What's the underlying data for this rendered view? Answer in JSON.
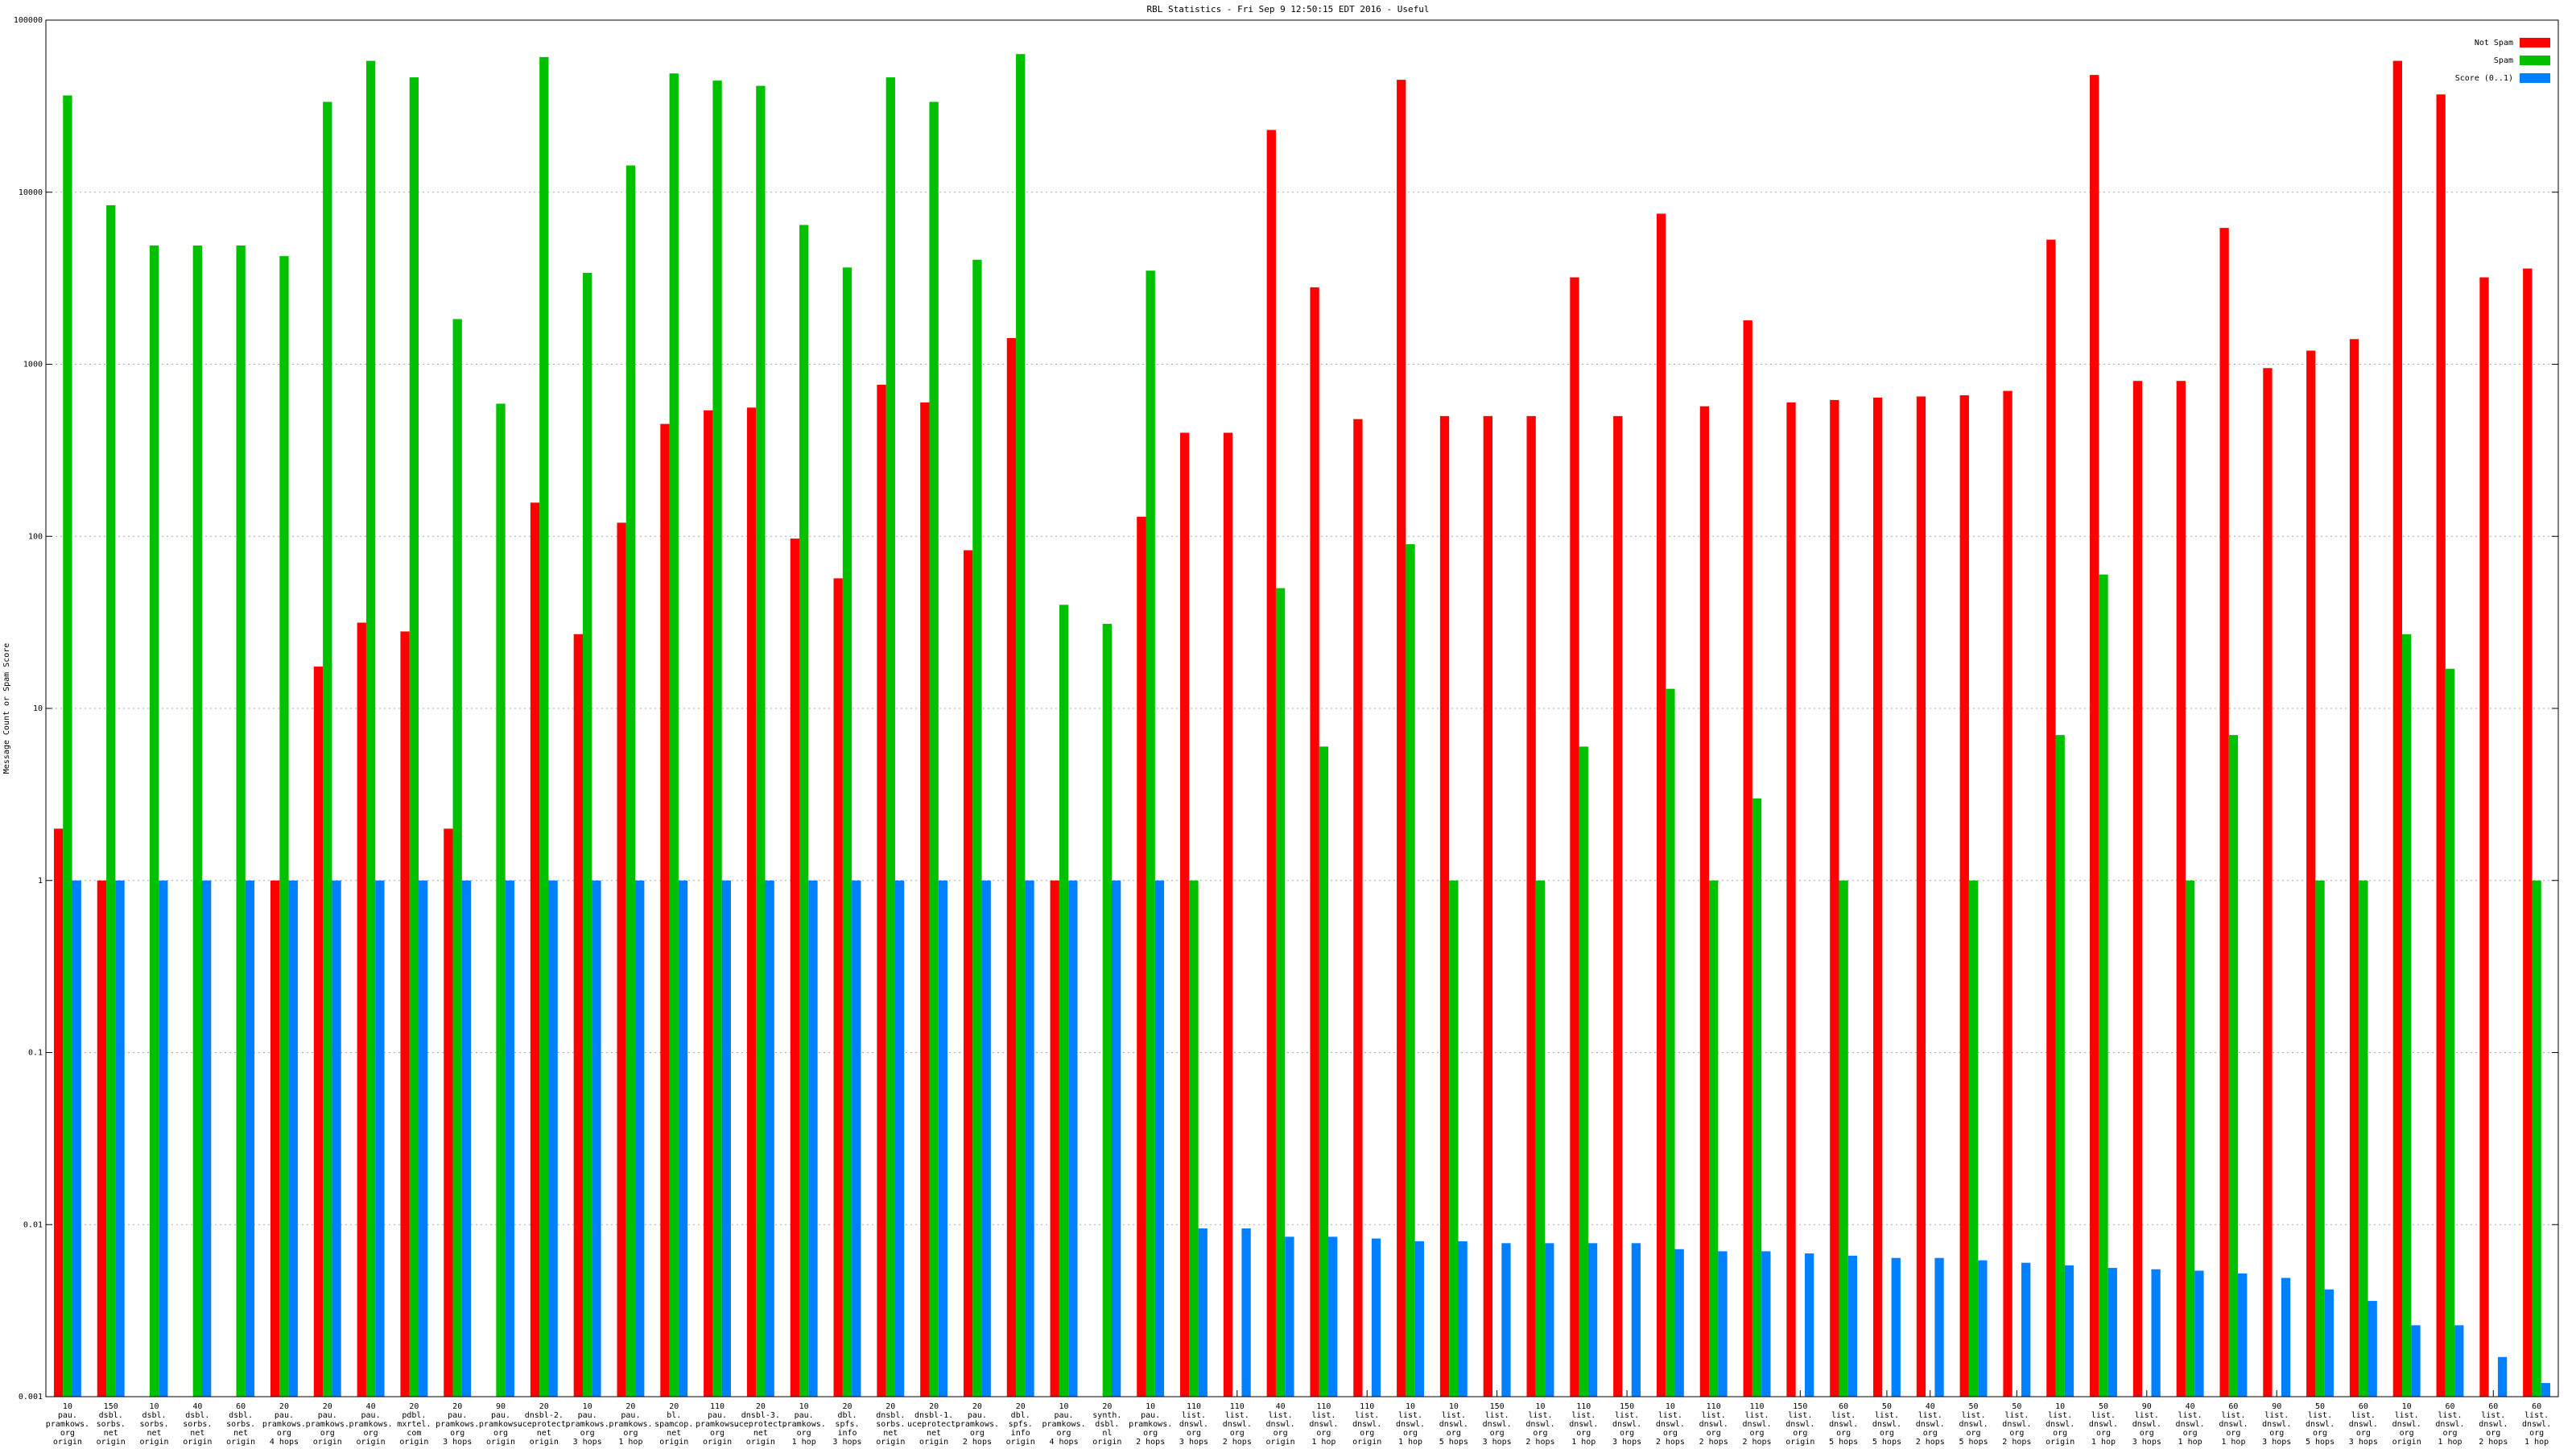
{
  "chart_data": {
    "type": "bar",
    "title": "RBL Statistics - Fri Sep  9 12:50:15 EDT 2016 - Useful",
    "y_label": "Message Count or Spam Score",
    "log_scale": true,
    "grid": true,
    "legend": "top-right",
    "ylim": [
      0.001,
      100000
    ],
    "yticks": [
      0.001,
      0.01,
      0.1,
      1,
      10,
      100,
      1000,
      10000,
      100000
    ],
    "categories": [
      "10\npau.\npramkows.\norg\norigin",
      "150\ndsbl.\nsorbs.\nnet\norigin",
      "10\ndsbl.\nsorbs.\nnet\norigin",
      "40\ndsbl.\nsorbs.\nnet\norigin",
      "60\ndsbl.\nsorbs.\nnet\norigin",
      "20\npau.\npramkows.\norg\n4 hops",
      "20\npau.\npramkows.\norg\norigin",
      "40\npau.\npramkows.\norg\norigin",
      "20\npdbl.\nmxrtel.\ncom\norigin",
      "20\npau.\npramkows.\norg\n3 hops",
      "90\npau.\npramkows.\norg\norigin",
      "20\ndnsbl-2.\nuceprotect.\nnet\norigin",
      "10\npau.\npramkows.\norg\n3 hops",
      "20\npau.\npramkows.\norg\n1 hop",
      "20\nbl.\nspamcop.\nnet\norigin",
      "110\npau.\npramkows.\norg\norigin",
      "20\ndnsbl-3.\nuceprotect.\nnet\norigin",
      "10\npau.\npramkows.\norg\n1 hop",
      "20\ndbl.\nspfs.\ninfo\n3 hops",
      "20\ndnsbl.\nsorbs.\nnet\norigin",
      "20\ndnsbl-1.\nuceprotect.\nnet\norigin",
      "20\npau.\npramkows.\norg\n2 hops",
      "20\ndbl.\nspfs.\ninfo\norigin",
      "10\npau.\npramkows.\norg\n4 hops",
      "20\nsynth.\ndsbl.\nnl\norigin",
      "10\npau.\npramkows.\norg\n2 hops",
      "110\nlist.\ndnswl.\norg\n3 hops",
      "110\nlist.\ndnswl.\norg\n2 hops",
      "40\nlist.\ndnswl.\norg\norigin",
      "110\nlist.\ndnswl.\norg\n1 hop",
      "110\nlist.\ndnswl.\norg\norigin",
      "10\nlist.\ndnswl.\norg\n1 hop",
      "10\nlist.\ndnswl.\norg\n5 hops",
      "150\nlist.\ndnswl.\norg\n3 hops",
      "10\nlist.\ndnswl.\norg\n2 hops",
      "110\nlist.\ndnswl.\norg\n1 hop",
      "150\nlist.\ndnswl.\norg\n3 hops",
      "10\nlist.\ndnswl.\norg\n2 hops",
      "110\nlist.\ndnswl.\norg\n2 hops",
      "110\nlist.\ndnswl.\norg\n2 hops",
      "150\nlist.\ndnswl.\norg\norigin",
      "60\nlist.\ndnswl.\norg\n5 hops",
      "50\nlist.\ndnswl.\norg\n5 hops",
      "40\nlist.\ndnswl.\norg\n2 hops",
      "50\nlist.\ndnswl.\norg\n5 hops",
      "50\nlist.\ndnswl.\norg\n2 hops",
      "10\nlist.\ndnswl.\norg\norigin",
      "50\nlist.\ndnswl.\norg\n1 hop",
      "90\nlist.\ndnswl.\norg\n3 hops",
      "40\nlist.\ndnswl.\norg\n1 hop",
      "60\nlist.\ndnswl.\norg\n1 hop",
      "90\nlist.\ndnswl.\norg\n3 hops",
      "50\nlist.\ndnswl.\norg\n5 hops",
      "60\nlist.\ndnswl.\norg\n3 hops",
      "10\nlist.\ndnswl.\norg\norigin",
      "60\nlist.\ndnswl.\norg\n1 hop",
      "60\nlist.\ndnswl.\norg\n2 hops",
      "60\nlist.\ndnswl.\norg\n1 hop"
    ],
    "series": [
      {
        "name": "Not Spam",
        "color": "#ff0000",
        "values": [
          2,
          1,
          null,
          null,
          null,
          1,
          17.5,
          31.5,
          28,
          2,
          null,
          157,
          27,
          120,
          450,
          540,
          560,
          97,
          57,
          760,
          600,
          83,
          1420,
          1,
          null,
          130,
          400,
          400,
          23000,
          2800,
          480,
          45000,
          500,
          500,
          500,
          3200,
          500,
          7500,
          570,
          1800,
          600,
          620,
          640,
          650,
          660,
          700,
          5300,
          48000,
          800,
          800,
          6200,
          950,
          1200,
          1400,
          58000,
          37000,
          3200,
          3600
        ]
      },
      {
        "name": "Spam",
        "color": "#00c000",
        "values": [
          36500,
          8400,
          4900,
          4900,
          4900,
          4250,
          33500,
          58000,
          46500,
          1830,
          590,
          61000,
          3400,
          14300,
          49000,
          44500,
          41500,
          6450,
          3650,
          46500,
          33500,
          4050,
          63500,
          40,
          31,
          3500,
          1,
          null,
          50,
          6,
          null,
          90,
          1,
          null,
          1,
          6,
          null,
          13,
          1,
          3,
          null,
          1,
          null,
          null,
          1,
          null,
          7,
          60,
          null,
          1,
          7,
          null,
          1,
          1,
          27,
          17,
          null,
          1
        ]
      },
      {
        "name": "Score (0..1)",
        "color": "#0080ff",
        "values": [
          1,
          1,
          1,
          1,
          1,
          1,
          1,
          1,
          1,
          1,
          1,
          1,
          1,
          1,
          1,
          1,
          1,
          1,
          1,
          1,
          1,
          1,
          1,
          1,
          1,
          1,
          0.0095,
          0.0095,
          0.0085,
          0.0085,
          0.0083,
          0.008,
          0.008,
          0.0078,
          0.0078,
          0.0078,
          0.0078,
          0.0072,
          0.007,
          0.007,
          0.0068,
          0.0066,
          0.0064,
          0.0064,
          0.0062,
          0.006,
          0.0058,
          0.0056,
          0.0055,
          0.0054,
          0.0052,
          0.0049,
          0.0042,
          0.0036,
          0.0026,
          0.0026,
          0.0017,
          0.0012
        ]
      }
    ]
  }
}
